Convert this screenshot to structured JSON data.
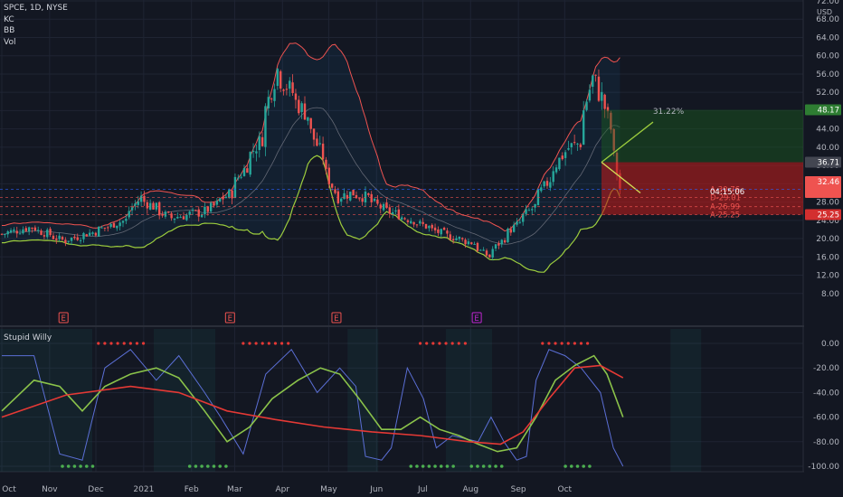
{
  "header": {
    "symbol_line": "SPCE, 1D, NYSE",
    "indicators": [
      "KC",
      "BB",
      "Vol"
    ],
    "currency": "USD",
    "sub_indicator": "Stupid Willy"
  },
  "colors": {
    "background": "#131722",
    "up": "#26a69a",
    "down": "#ef5350",
    "kc_upper": "#ef5350",
    "kc_lower": "#9ccc3d",
    "bb": "#787b86",
    "percent_r": "#5b6fd6",
    "signal_green": "#4caf50",
    "signal_red": "#e53935",
    "target_box": "#1b5e20",
    "stop_box": "#b71c1c",
    "earnings": "#ef5350",
    "earnings_future": "#c026d3"
  },
  "chart_data": [
    {
      "type": "candlestick",
      "title": "SPCE, 1D, NYSE",
      "ylabel": "USD",
      "y_ticks": [
        "72.00",
        "68.00",
        "64.00",
        "60.00",
        "56.00",
        "52.00",
        "48.00",
        "44.00",
        "40.00",
        "36.00",
        "32.00",
        "28.00",
        "24.00",
        "20.00",
        "16.00",
        "12.00",
        "8.00"
      ],
      "x_ticks": [
        "Oct",
        "Nov",
        "Dec",
        "2021",
        "Feb",
        "Mar",
        "Apr",
        "May",
        "Jun",
        "Jul",
        "Aug",
        "Sep",
        "Oct"
      ],
      "price_path": {
        "dates": [
          "2020-10-01",
          "2020-10-15",
          "2020-10-30",
          "2020-11-13",
          "2020-11-27",
          "2020-12-04",
          "2020-12-18",
          "2021-01-04",
          "2021-01-15",
          "2021-01-29",
          "2021-02-05",
          "2021-02-12",
          "2021-02-19",
          "2021-02-26",
          "2021-03-05",
          "2021-03-12",
          "2021-03-19",
          "2021-03-26",
          "2021-04-09",
          "2021-04-23",
          "2021-05-07",
          "2021-05-14",
          "2021-05-21",
          "2021-06-04",
          "2021-06-18",
          "2021-06-25",
          "2021-07-01",
          "2021-07-06",
          "2021-07-09",
          "2021-07-12",
          "2021-07-14"
        ],
        "close": [
          21.0,
          22.5,
          19.5,
          21.5,
          24.0,
          29.0,
          24.5,
          26.0,
          30.0,
          42.0,
          57.0,
          52.0,
          47.0,
          38.0,
          29.0,
          30.0,
          29.0,
          26.5,
          24.0,
          21.0,
          19.0,
          16.0,
          20.0,
          27.0,
          39.0,
          41.0,
          55.0,
          51.0,
          44.0,
          38.0,
          31.0
        ]
      },
      "annotations": {
        "projection_pct": "31.22%",
        "target_price": "48.17",
        "entry_price": "36.71",
        "last_price": "32.46",
        "countdown": "04:15:06",
        "stop_price": "25.25",
        "levels": [
          {
            "label": "A-30.76",
            "value": 30.76
          },
          {
            "label": "D-29.01",
            "value": 29.01
          },
          {
            "label": "A-26.99",
            "value": 26.99
          },
          {
            "label": "A-25.25",
            "value": 25.25
          }
        ],
        "earnings_marker": "E"
      }
    },
    {
      "type": "line",
      "title": "Stupid Willy",
      "y_ticks": [
        "0.00",
        "-20.00",
        "-40.00",
        "-60.00",
        "-80.00",
        "-100.00"
      ],
      "ylim": [
        -100,
        0
      ],
      "series": [
        {
          "key": "percent_r",
          "points": [
            [
              0,
              -10
            ],
            [
              10,
              -10
            ],
            [
              18,
              -90
            ],
            [
              25,
              -95
            ],
            [
              32,
              -20
            ],
            [
              40,
              -5
            ],
            [
              48,
              -30
            ],
            [
              55,
              -10
            ],
            [
              63,
              -40
            ],
            [
              68,
              -60
            ],
            [
              75,
              -90
            ],
            [
              82,
              -25
            ],
            [
              90,
              -5
            ],
            [
              98,
              -40
            ],
            [
              105,
              -20
            ],
            [
              110,
              -35
            ],
            [
              113,
              -92
            ],
            [
              118,
              -95
            ],
            [
              121,
              -85
            ],
            [
              126,
              -20
            ],
            [
              131,
              -45
            ],
            [
              135,
              -85
            ],
            [
              140,
              -75
            ],
            [
              148,
              -80
            ],
            [
              152,
              -60
            ],
            [
              156,
              -80
            ],
            [
              160,
              -95
            ],
            [
              163,
              -92
            ],
            [
              166,
              -30
            ],
            [
              170,
              -5
            ],
            [
              175,
              -10
            ],
            [
              180,
              -20
            ],
            [
              186,
              -40
            ],
            [
              190,
              -85
            ],
            [
              193,
              -100
            ]
          ]
        },
        {
          "key": "signal_green",
          "points": [
            [
              0,
              -55
            ],
            [
              10,
              -30
            ],
            [
              18,
              -35
            ],
            [
              25,
              -55
            ],
            [
              32,
              -35
            ],
            [
              40,
              -25
            ],
            [
              48,
              -20
            ],
            [
              55,
              -28
            ],
            [
              63,
              -55
            ],
            [
              70,
              -80
            ],
            [
              77,
              -68
            ],
            [
              84,
              -45
            ],
            [
              92,
              -30
            ],
            [
              99,
              -20
            ],
            [
              105,
              -25
            ],
            [
              111,
              -45
            ],
            [
              118,
              -70
            ],
            [
              124,
              -70
            ],
            [
              130,
              -60
            ],
            [
              136,
              -70
            ],
            [
              142,
              -75
            ],
            [
              148,
              -82
            ],
            [
              154,
              -88
            ],
            [
              160,
              -85
            ],
            [
              166,
              -60
            ],
            [
              172,
              -30
            ],
            [
              178,
              -18
            ],
            [
              184,
              -10
            ],
            [
              188,
              -25
            ],
            [
              193,
              -60
            ]
          ]
        },
        {
          "key": "signal_red",
          "points": [
            [
              0,
              -60
            ],
            [
              20,
              -42
            ],
            [
              40,
              -35
            ],
            [
              55,
              -40
            ],
            [
              70,
              -55
            ],
            [
              85,
              -62
            ],
            [
              100,
              -68
            ],
            [
              115,
              -72
            ],
            [
              130,
              -75
            ],
            [
              145,
              -80
            ],
            [
              155,
              -82
            ],
            [
              162,
              -72
            ],
            [
              170,
              -45
            ],
            [
              178,
              -20
            ],
            [
              186,
              -18
            ],
            [
              193,
              -28
            ]
          ]
        }
      ]
    }
  ]
}
